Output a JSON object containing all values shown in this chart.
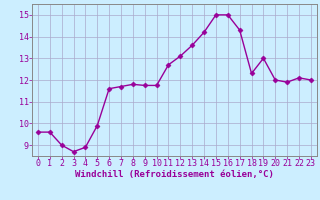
{
  "x": [
    0,
    1,
    2,
    3,
    4,
    5,
    6,
    7,
    8,
    9,
    10,
    11,
    12,
    13,
    14,
    15,
    16,
    17,
    18,
    19,
    20,
    21,
    22,
    23
  ],
  "y": [
    9.6,
    9.6,
    9.0,
    8.7,
    8.9,
    9.9,
    11.6,
    11.7,
    11.8,
    11.75,
    11.75,
    12.7,
    13.1,
    13.6,
    14.2,
    15.0,
    15.0,
    14.3,
    12.3,
    13.0,
    12.0,
    11.9,
    12.1,
    12.0
  ],
  "line_color": "#990099",
  "marker": "D",
  "markersize": 2.5,
  "linewidth": 1.0,
  "bg_color": "#cceeff",
  "grid_color": "#aaaacc",
  "xlabel": "Windchill (Refroidissement éolien,°C)",
  "ylabel": "",
  "title": "",
  "xlim": [
    -0.5,
    23.5
  ],
  "ylim": [
    8.5,
    15.5
  ],
  "yticks": [
    9,
    10,
    11,
    12,
    13,
    14,
    15
  ],
  "xticks": [
    0,
    1,
    2,
    3,
    4,
    5,
    6,
    7,
    8,
    9,
    10,
    11,
    12,
    13,
    14,
    15,
    16,
    17,
    18,
    19,
    20,
    21,
    22,
    23
  ],
  "xlabel_fontsize": 6.5,
  "tick_fontsize": 6.0,
  "xlabel_color": "#990099",
  "tick_color": "#990099",
  "axis_color": "#888888",
  "spine_color": "#888888"
}
